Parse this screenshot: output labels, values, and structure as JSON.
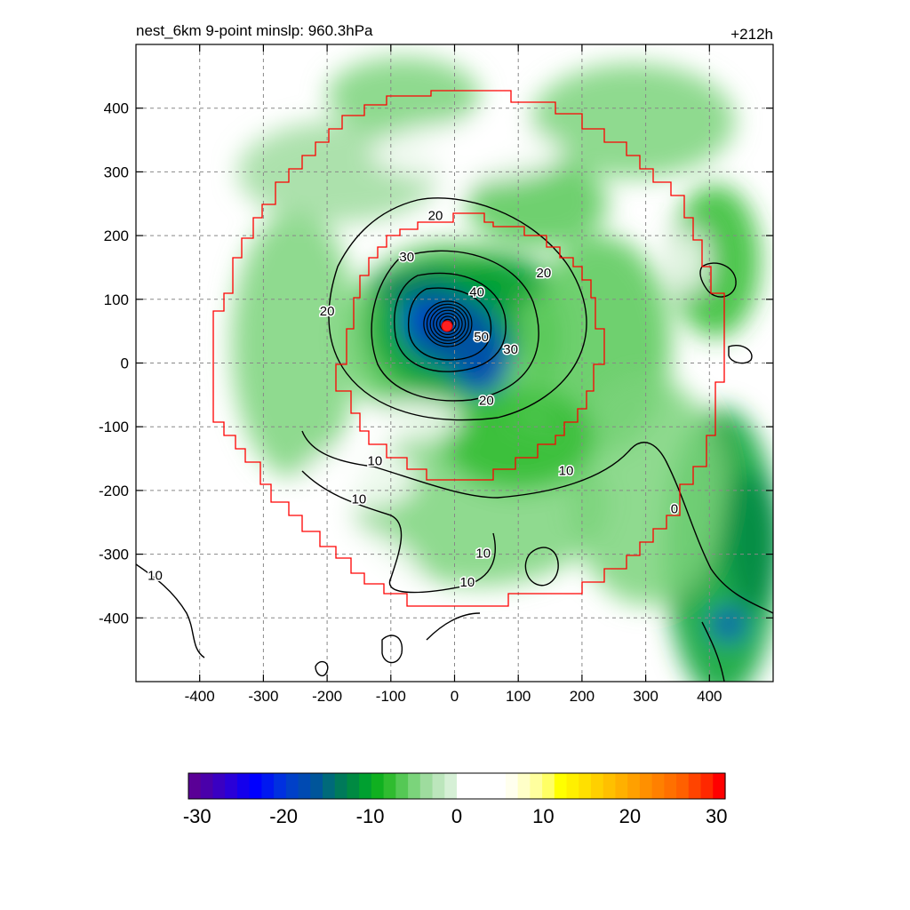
{
  "chart_data": {
    "type": "heatmap",
    "title": "nest_6km  9-point minslp: 960.3hPa",
    "time_label": "+212h",
    "xlabel": "",
    "ylabel": "",
    "xlim": [
      -500,
      500
    ],
    "ylim": [
      -500,
      500
    ],
    "x_ticks": [
      -400,
      -300,
      -200,
      -100,
      0,
      100,
      200,
      300,
      400
    ],
    "y_ticks": [
      -400,
      -300,
      -200,
      -100,
      0,
      100,
      200,
      300,
      400
    ],
    "grid": true,
    "center": {
      "x": -12,
      "y": 60
    },
    "fill_field": {
      "description_levels": [
        -3,
        -5,
        -7,
        -9,
        -11,
        -13,
        -15,
        -17,
        -19,
        -21
      ],
      "blobs": [
        {
          "x": -5,
          "y": 40,
          "rx": 170,
          "ry": 150,
          "v": -6
        },
        {
          "x": -15,
          "y": 55,
          "rx": 120,
          "ry": 110,
          "v": -11
        },
        {
          "x": -10,
          "y": 60,
          "rx": 70,
          "ry": 65,
          "v": -17
        },
        {
          "x": -35,
          "y": 70,
          "rx": 45,
          "ry": 50,
          "v": -21
        },
        {
          "x": 40,
          "y": 10,
          "rx": 45,
          "ry": 60,
          "v": -19
        },
        {
          "x": 0,
          "y": 40,
          "rx": 60,
          "ry": 45,
          "v": -16
        },
        {
          "x": -50,
          "y": 120,
          "rx": 80,
          "ry": 25,
          "v": -13
        },
        {
          "x": 70,
          "y": 130,
          "rx": 80,
          "ry": 40,
          "v": -10
        },
        {
          "x": 230,
          "y": 30,
          "rx": 110,
          "ry": 170,
          "v": -7
        },
        {
          "x": 130,
          "y": 250,
          "rx": 110,
          "ry": 70,
          "v": -7
        },
        {
          "x": -250,
          "y": 30,
          "rx": 100,
          "ry": 210,
          "v": -5
        },
        {
          "x": -180,
          "y": 300,
          "rx": 160,
          "ry": 80,
          "v": -4
        },
        {
          "x": -80,
          "y": 420,
          "rx": 120,
          "ry": 60,
          "v": -5
        },
        {
          "x": 280,
          "y": 380,
          "rx": 160,
          "ry": 90,
          "v": -5
        },
        {
          "x": 410,
          "y": 160,
          "rx": 70,
          "ry": 120,
          "v": -8
        },
        {
          "x": 420,
          "y": -300,
          "rx": 90,
          "ry": 230,
          "v": -10
        },
        {
          "x": 470,
          "y": -280,
          "rx": 45,
          "ry": 110,
          "v": -12
        },
        {
          "x": 430,
          "y": -410,
          "rx": 25,
          "ry": 25,
          "v": -19
        },
        {
          "x": 300,
          "y": -200,
          "rx": 120,
          "ry": 180,
          "v": -5
        },
        {
          "x": 40,
          "y": -220,
          "rx": 200,
          "ry": 130,
          "v": -5
        },
        {
          "x": 100,
          "y": -120,
          "rx": 120,
          "ry": 80,
          "v": -8
        },
        {
          "x": -60,
          "y": -90,
          "rx": 70,
          "ry": 30,
          "v": 3
        },
        {
          "x": -150,
          "y": -180,
          "rx": 90,
          "ry": 50,
          "v": 3
        },
        {
          "x": 20,
          "y": 330,
          "rx": 150,
          "ry": 45,
          "v": 3
        },
        {
          "x": -200,
          "y": -350,
          "rx": 150,
          "ry": 100,
          "v": 3
        },
        {
          "x": -480,
          "y": 20,
          "rx": 20,
          "ry": 30,
          "v": 5
        },
        {
          "x": -470,
          "y": -140,
          "rx": 12,
          "ry": 12,
          "v": 4
        },
        {
          "x": 370,
          "y": 160,
          "rx": 25,
          "ry": 50,
          "v": 3
        }
      ]
    },
    "contour_labels": [
      {
        "text": "20",
        "x": -30,
        "y": 230
      },
      {
        "text": "30",
        "x": -75,
        "y": 165
      },
      {
        "text": "40",
        "x": 35,
        "y": 110
      },
      {
        "text": "50",
        "x": 42,
        "y": 40
      },
      {
        "text": "30",
        "x": 88,
        "y": 20
      },
      {
        "text": "20",
        "x": 140,
        "y": 140
      },
      {
        "text": "20",
        "x": -200,
        "y": 80
      },
      {
        "text": "20",
        "x": 50,
        "y": -60
      },
      {
        "text": "10",
        "x": -125,
        "y": -155
      },
      {
        "text": "10",
        "x": -150,
        "y": -215
      },
      {
        "text": "10",
        "x": 45,
        "y": -300
      },
      {
        "text": "10",
        "x": 20,
        "y": -345
      },
      {
        "text": "10",
        "x": 175,
        "y": -170
      },
      {
        "text": "10",
        "x": -470,
        "y": -335
      },
      {
        "text": "0",
        "x": 345,
        "y": -230
      }
    ],
    "colorbar": {
      "tick_labels": [
        "-30",
        "-20",
        "-10",
        "0",
        "10",
        "20",
        "30"
      ],
      "tick_values": [
        -30,
        -20,
        -10,
        0,
        10,
        20,
        30
      ],
      "range": [
        -31,
        31
      ],
      "colors": [
        "#5a0096",
        "#4a00aa",
        "#3a00c2",
        "#2a00d8",
        "#1400ec",
        "#0000ff",
        "#0018f0",
        "#0030e0",
        "#0040c8",
        "#004ab2",
        "#00559a",
        "#006a7a",
        "#007a5a",
        "#008a42",
        "#00a030",
        "#10b020",
        "#30bc30",
        "#55c855",
        "#7bd47b",
        "#9edc9e",
        "#bce6bc",
        "#d6f0d6",
        "#ffffff",
        "#ffffff",
        "#ffffff",
        "#ffffff",
        "#ffffee",
        "#ffffc8",
        "#ffff9e",
        "#ffff64",
        "#ffff00",
        "#fff000",
        "#ffe000",
        "#ffd000",
        "#ffc000",
        "#ffb000",
        "#ffa000",
        "#ff9000",
        "#ff8000",
        "#ff7000",
        "#ff6000",
        "#ff4400",
        "#ff2800",
        "#ff0000"
      ]
    }
  }
}
